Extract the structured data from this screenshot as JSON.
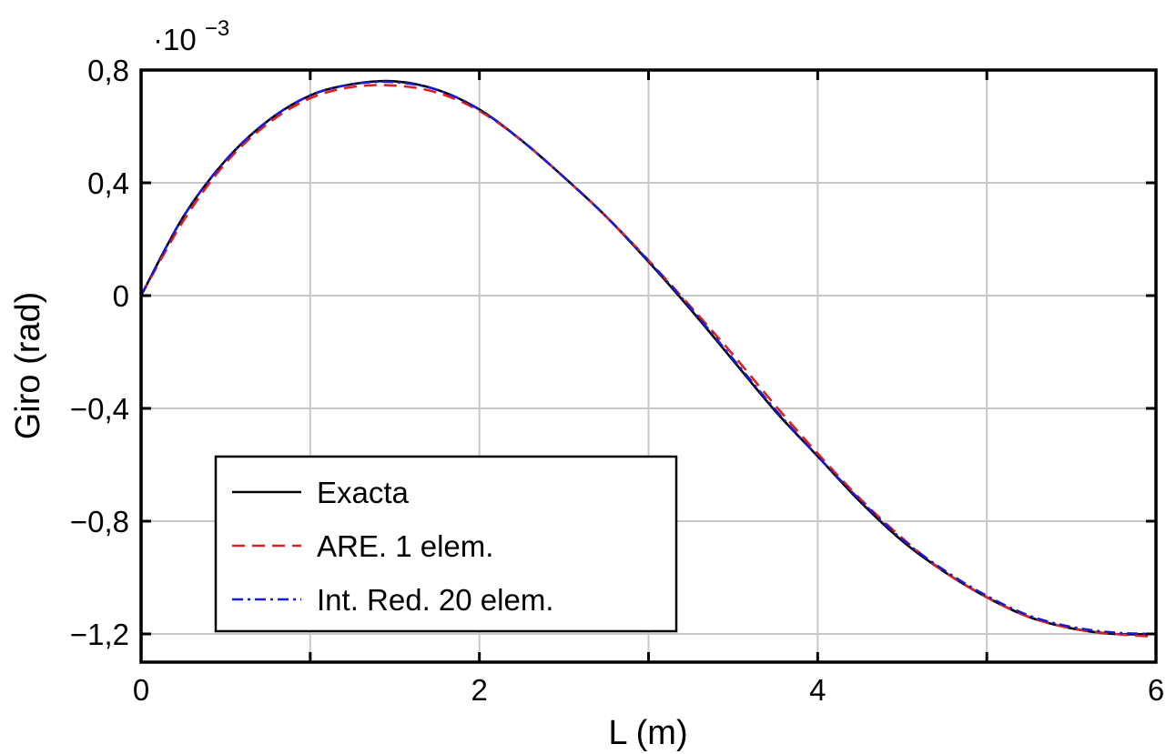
{
  "chart_data": {
    "type": "line",
    "title": "",
    "xlabel": "L (m)",
    "ylabel": "Giro (rad)",
    "multiplier_base": "·10",
    "multiplier_exp": "−3",
    "xlim": [
      0,
      6
    ],
    "ylim": [
      -1.3,
      0.8
    ],
    "grid": true,
    "legend_position": "bottom-left",
    "x_ticks": [
      {
        "value": 0,
        "label": "0"
      },
      {
        "value": 2,
        "label": "2"
      },
      {
        "value": 4,
        "label": "4"
      },
      {
        "value": 6,
        "label": "6"
      }
    ],
    "x_grid": [
      1,
      2,
      3,
      4,
      5
    ],
    "y_ticks": [
      {
        "value": 0.8,
        "label": "0,8"
      },
      {
        "value": 0.4,
        "label": "0,4"
      },
      {
        "value": 0,
        "label": "0"
      },
      {
        "value": -0.4,
        "label": "−0,4"
      },
      {
        "value": -0.8,
        "label": "−0,8"
      },
      {
        "value": -1.2,
        "label": "−1,2"
      }
    ],
    "y_grid": [
      0.4,
      0,
      -0.4,
      -0.8,
      -1.2
    ],
    "x": [
      0,
      0.25,
      0.5,
      0.75,
      1.0,
      1.25,
      1.5,
      1.75,
      2.0,
      2.25,
      2.5,
      2.75,
      3.0,
      3.25,
      3.5,
      3.75,
      4.0,
      4.25,
      4.5,
      4.75,
      5.0,
      5.25,
      5.5,
      5.75,
      6.0
    ],
    "series": [
      {
        "name": "Exacta",
        "color": "#000000",
        "style": "solid",
        "values": [
          0,
          0.28,
          0.48,
          0.62,
          0.71,
          0.75,
          0.76,
          0.73,
          0.66,
          0.55,
          0.42,
          0.28,
          0.12,
          -0.05,
          -0.23,
          -0.41,
          -0.57,
          -0.73,
          -0.87,
          -0.98,
          -1.07,
          -1.14,
          -1.18,
          -1.2,
          -1.2
        ]
      },
      {
        "name": "ARE. 1 elem.",
        "color": "#e02020",
        "style": "dashed",
        "values": [
          0,
          0.265,
          0.47,
          0.61,
          0.7,
          0.74,
          0.745,
          0.72,
          0.655,
          0.55,
          0.42,
          0.28,
          0.125,
          -0.04,
          -0.21,
          -0.39,
          -0.56,
          -0.72,
          -0.86,
          -0.98,
          -1.07,
          -1.14,
          -1.18,
          -1.2,
          -1.21
        ]
      },
      {
        "name": "Int. Red. 20 elem.",
        "color": "#1a1ad0",
        "style": "dashdot",
        "values": [
          0,
          0.28,
          0.48,
          0.62,
          0.71,
          0.75,
          0.757,
          0.73,
          0.66,
          0.55,
          0.42,
          0.28,
          0.123,
          -0.045,
          -0.225,
          -0.405,
          -0.57,
          -0.725,
          -0.865,
          -0.975,
          -1.065,
          -1.135,
          -1.175,
          -1.195,
          -1.2
        ]
      }
    ]
  }
}
